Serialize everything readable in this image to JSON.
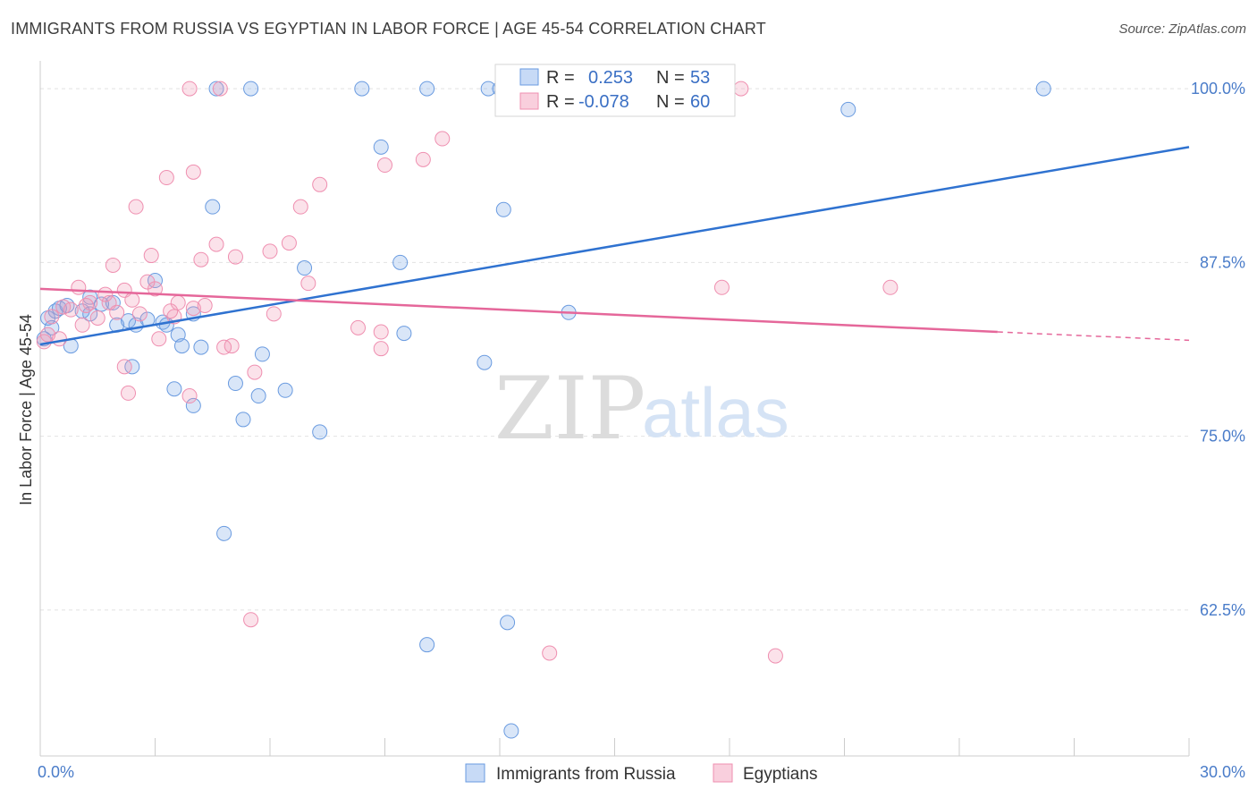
{
  "header": {
    "title": "IMMIGRANTS FROM RUSSIA VS EGYPTIAN IN LABOR FORCE | AGE 45-54 CORRELATION CHART",
    "source": "Source: ZipAtlas.com"
  },
  "watermark": {
    "zip": "ZIP",
    "atlas": "atlas"
  },
  "legend": {
    "rows": [
      {
        "r_label": "R =",
        "r_value": "0.253",
        "n_label": "N =",
        "n_value": "53",
        "color": "#6a9be0"
      },
      {
        "r_label": "R =",
        "r_value": "-0.078",
        "n_label": "N =",
        "n_value": "60",
        "color": "#ef8fb0"
      }
    ]
  },
  "bottom_legend": [
    {
      "label": "Immigrants from Russia",
      "color": "#6a9be0"
    },
    {
      "label": "Egyptians",
      "color": "#ef8fb0"
    }
  ],
  "chart_data": {
    "type": "scatter",
    "title": "IMMIGRANTS FROM RUSSIA VS EGYPTIAN IN LABOR FORCE | AGE 45-54 CORRELATION CHART",
    "ylabel": "In Labor Force | Age 45-54",
    "xlim": [
      0,
      30
    ],
    "ylim": [
      52,
      102
    ],
    "x_ticks": [
      {
        "value": 0,
        "label": "0.0%"
      },
      {
        "value": 30,
        "label": "30.0%"
      }
    ],
    "y_ticks": [
      {
        "value": 100,
        "label": "100.0%"
      },
      {
        "value": 87.5,
        "label": "87.5%"
      },
      {
        "value": 75,
        "label": "75.0%"
      },
      {
        "value": 62.5,
        "label": "62.5%"
      }
    ],
    "series": [
      {
        "name": "Immigrants from Russia",
        "color": "#6a9be0",
        "fill": "rgba(120,165,230,0.28)",
        "trend": {
          "x0": 0,
          "y0": 81.6,
          "x1": 30,
          "y1": 95.8
        },
        "points": [
          [
            0.2,
            83.5
          ],
          [
            0.3,
            82.8
          ],
          [
            0.4,
            84.0
          ],
          [
            0.5,
            84.2
          ],
          [
            0.7,
            84.4
          ],
          [
            0.8,
            81.5
          ],
          [
            1.1,
            84.0
          ],
          [
            1.3,
            83.8
          ],
          [
            1.3,
            85.0
          ],
          [
            1.6,
            84.5
          ],
          [
            2.0,
            83.0
          ],
          [
            2.3,
            83.3
          ],
          [
            2.4,
            80.0
          ],
          [
            2.5,
            83.0
          ],
          [
            3.0,
            86.2
          ],
          [
            3.2,
            83.2
          ],
          [
            3.5,
            78.4
          ],
          [
            3.6,
            82.3
          ],
          [
            3.7,
            81.5
          ],
          [
            4.0,
            77.2
          ],
          [
            4.0,
            83.8
          ],
          [
            4.2,
            81.4
          ],
          [
            4.5,
            91.5
          ],
          [
            4.6,
            100.0
          ],
          [
            4.8,
            68.0
          ],
          [
            5.1,
            78.8
          ],
          [
            5.3,
            76.2
          ],
          [
            5.5,
            100.0
          ],
          [
            5.7,
            77.9
          ],
          [
            5.8,
            80.9
          ],
          [
            6.4,
            78.3
          ],
          [
            6.9,
            87.1
          ],
          [
            7.3,
            75.3
          ],
          [
            8.4,
            100.0
          ],
          [
            8.9,
            95.8
          ],
          [
            9.4,
            87.5
          ],
          [
            9.5,
            82.4
          ],
          [
            10.1,
            60.0
          ],
          [
            10.1,
            100.0
          ],
          [
            11.6,
            80.3
          ],
          [
            11.7,
            100.0
          ],
          [
            12.1,
            91.3
          ],
          [
            12.2,
            61.6
          ],
          [
            12.3,
            53.8
          ],
          [
            13.8,
            83.9
          ],
          [
            14.1,
            100.0
          ],
          [
            21.1,
            98.5
          ],
          [
            26.2,
            100.0
          ],
          [
            12.0,
            100.0
          ],
          [
            1.9,
            84.6
          ],
          [
            2.8,
            83.4
          ],
          [
            0.1,
            82.0
          ],
          [
            3.3,
            83.0
          ]
        ]
      },
      {
        "name": "Egyptians",
        "color": "#ef8fb0",
        "fill": "rgba(240,150,180,0.28)",
        "trend": {
          "x0": 0,
          "y0": 85.6,
          "x1": 25,
          "y1": 82.5
        },
        "trend_dashed": {
          "x0": 25,
          "y0": 82.5,
          "x1": 30,
          "y1": 81.9
        },
        "points": [
          [
            0.1,
            81.8
          ],
          [
            0.2,
            82.3
          ],
          [
            0.3,
            83.6
          ],
          [
            0.5,
            82.0
          ],
          [
            0.6,
            84.3
          ],
          [
            0.8,
            84.1
          ],
          [
            1.0,
            85.7
          ],
          [
            1.1,
            83.0
          ],
          [
            1.3,
            84.6
          ],
          [
            1.5,
            83.5
          ],
          [
            1.7,
            85.2
          ],
          [
            1.8,
            84.6
          ],
          [
            1.9,
            87.3
          ],
          [
            2.0,
            83.9
          ],
          [
            2.2,
            85.5
          ],
          [
            2.2,
            80.0
          ],
          [
            2.3,
            78.1
          ],
          [
            2.4,
            84.8
          ],
          [
            2.5,
            91.5
          ],
          [
            2.6,
            83.8
          ],
          [
            2.8,
            86.1
          ],
          [
            2.9,
            88.0
          ],
          [
            3.0,
            85.6
          ],
          [
            3.1,
            82.0
          ],
          [
            3.3,
            93.6
          ],
          [
            3.5,
            83.6
          ],
          [
            3.6,
            84.6
          ],
          [
            3.9,
            100.0
          ],
          [
            3.9,
            77.9
          ],
          [
            4.0,
            94.0
          ],
          [
            4.2,
            87.7
          ],
          [
            4.3,
            84.4
          ],
          [
            4.6,
            88.8
          ],
          [
            4.7,
            100.0
          ],
          [
            4.8,
            81.4
          ],
          [
            5.1,
            87.9
          ],
          [
            5.5,
            61.8
          ],
          [
            5.6,
            79.6
          ],
          [
            6.0,
            88.3
          ],
          [
            6.1,
            83.8
          ],
          [
            6.5,
            88.9
          ],
          [
            6.8,
            91.5
          ],
          [
            7.3,
            93.1
          ],
          [
            8.3,
            82.8
          ],
          [
            8.9,
            81.3
          ],
          [
            8.9,
            82.5
          ],
          [
            9.0,
            94.5
          ],
          [
            10.0,
            94.9
          ],
          [
            10.5,
            96.4
          ],
          [
            12.7,
            100.0
          ],
          [
            13.3,
            59.4
          ],
          [
            17.8,
            85.7
          ],
          [
            18.3,
            100.0
          ],
          [
            19.2,
            59.2
          ],
          [
            22.2,
            85.7
          ],
          [
            5.0,
            81.5
          ],
          [
            4.0,
            84.2
          ],
          [
            1.2,
            84.4
          ],
          [
            3.4,
            84.0
          ],
          [
            7.0,
            86.0
          ]
        ]
      }
    ]
  }
}
